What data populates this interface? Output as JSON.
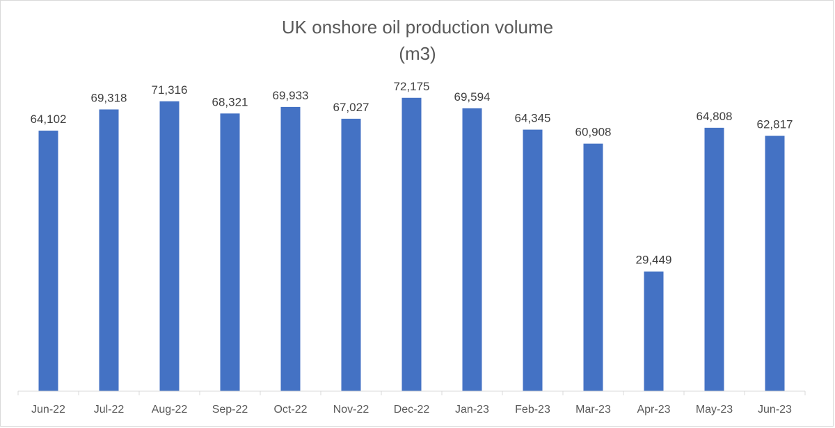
{
  "chart_data": {
    "type": "bar",
    "title": "UK onshore oil production volume",
    "subtitle": "(m3)",
    "xlabel": "",
    "ylabel": "",
    "ylim": [
      0,
      80000
    ],
    "grid": false,
    "legend": "none",
    "bar_color": "#4472C4",
    "categories": [
      "Jun-22",
      "Jul-22",
      "Aug-22",
      "Sep-22",
      "Oct-22",
      "Nov-22",
      "Dec-22",
      "Jan-23",
      "Feb-23",
      "Mar-23",
      "Apr-23",
      "May-23",
      "Jun-23"
    ],
    "values": [
      64102,
      69318,
      71316,
      68321,
      69933,
      67027,
      72175,
      69594,
      64345,
      60908,
      29449,
      64808,
      62817
    ],
    "value_labels": [
      "64,102",
      "69,318",
      "71,316",
      "68,321",
      "69,933",
      "67,027",
      "72,175",
      "69,594",
      "64,345",
      "60,908",
      "29,449",
      "64,808",
      "62,817"
    ]
  }
}
